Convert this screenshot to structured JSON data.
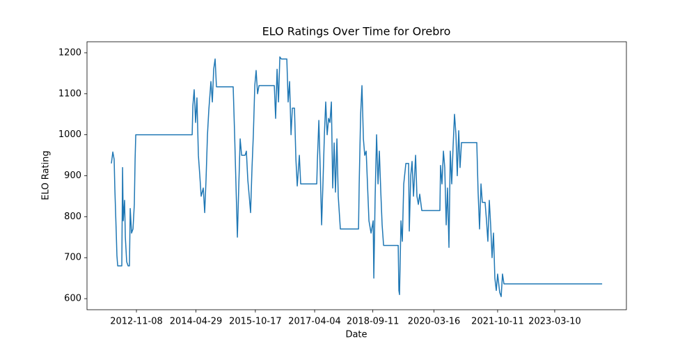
{
  "chart_data": {
    "type": "line",
    "title": "ELO Ratings Over Time for Orebro",
    "x_label": "Date",
    "y_label": "ELO Rating",
    "color": "#1f77b4",
    "xlim": [
      "2011-08-20",
      "2024-12-16"
    ],
    "xticks": [
      "2012-11-08",
      "2014-04-29",
      "2015-10-17",
      "2017-04-04",
      "2018-09-11",
      "2020-03-16",
      "2021-10-11",
      "2023-03-10"
    ],
    "ylim": [
      573,
      1227
    ],
    "yticks": [
      600,
      700,
      800,
      900,
      1000,
      1100,
      1200
    ],
    "grid": false,
    "x": [
      "2012-03-27",
      "2012-04-09",
      "2012-04-21",
      "2012-04-27",
      "2012-05-10",
      "2012-05-16",
      "2012-05-23",
      "2012-06-29",
      "2012-07-06",
      "2012-07-12",
      "2012-07-24",
      "2012-07-31",
      "2012-08-12",
      "2012-08-25",
      "2012-09-06",
      "2012-09-13",
      "2012-09-25",
      "2012-10-08",
      "2012-10-20",
      "2012-10-27",
      "2012-11-02",
      "2014-03-26",
      "2014-04-01",
      "2014-04-13",
      "2014-04-26",
      "2014-05-08",
      "2014-05-21",
      "2014-06-03",
      "2014-06-15",
      "2014-07-04",
      "2014-07-17",
      "2014-07-29",
      "2014-08-11",
      "2014-08-23",
      "2014-09-11",
      "2014-09-24",
      "2014-10-06",
      "2014-10-19",
      "2014-10-31",
      "2015-03-31",
      "2015-04-13",
      "2015-04-25",
      "2015-05-08",
      "2015-05-20",
      "2015-06-02",
      "2015-06-15",
      "2015-07-16",
      "2015-07-28",
      "2015-08-10",
      "2015-08-23",
      "2015-09-04",
      "2015-09-17",
      "2015-09-29",
      "2015-10-12",
      "2015-10-24",
      "2015-11-06",
      "2015-11-19",
      "2016-04-05",
      "2016-04-17",
      "2016-04-30",
      "2016-05-13",
      "2016-05-25",
      "2016-06-07",
      "2016-07-27",
      "2016-08-08",
      "2016-08-21",
      "2016-09-03",
      "2016-09-15",
      "2016-10-04",
      "2016-10-17",
      "2016-10-29",
      "2016-11-17",
      "2016-11-29",
      "2017-04-23",
      "2017-04-29",
      "2017-05-12",
      "2017-05-24",
      "2017-06-06",
      "2017-06-18",
      "2017-07-01",
      "2017-07-13",
      "2017-07-26",
      "2017-08-08",
      "2017-08-20",
      "2017-09-02",
      "2017-09-14",
      "2017-09-27",
      "2017-10-09",
      "2017-10-22",
      "2017-11-03",
      "2017-11-22",
      "2018-05-05",
      "2018-05-11",
      "2018-05-24",
      "2018-06-05",
      "2018-06-18",
      "2018-06-30",
      "2018-07-13",
      "2018-08-07",
      "2018-08-26",
      "2018-09-14",
      "2018-09-20",
      "2018-10-02",
      "2018-10-15",
      "2018-10-28",
      "2018-11-09",
      "2018-11-22",
      "2018-12-04",
      "2018-12-17",
      "2019-04-28",
      "2019-05-04",
      "2019-05-10",
      "2019-05-23",
      "2019-06-04",
      "2019-06-17",
      "2019-07-06",
      "2019-07-31",
      "2019-08-06",
      "2019-08-19",
      "2019-08-31",
      "2019-09-13",
      "2019-10-02",
      "2019-10-14",
      "2019-10-27",
      "2019-11-08",
      "2019-11-27",
      "2020-05-08",
      "2020-05-14",
      "2020-05-27",
      "2020-06-09",
      "2020-06-21",
      "2020-07-04",
      "2020-07-16",
      "2020-07-29",
      "2020-08-10",
      "2020-08-23",
      "2020-09-04",
      "2020-09-17",
      "2020-09-30",
      "2020-10-12",
      "2020-10-25",
      "2020-11-06",
      "2020-11-19",
      "2021-04-06",
      "2021-04-18",
      "2021-05-01",
      "2021-05-14",
      "2021-05-26",
      "2021-06-20",
      "2021-07-03",
      "2021-07-15",
      "2021-07-28",
      "2021-08-09",
      "2021-08-22",
      "2021-09-04",
      "2021-09-16",
      "2021-09-29",
      "2021-10-11",
      "2021-10-30",
      "2021-11-12",
      "2021-11-24",
      "2021-12-07",
      "2024-05-11"
    ],
    "values": [
      930,
      958,
      940,
      870,
      760,
      705,
      680,
      680,
      920,
      790,
      840,
      750,
      690,
      680,
      680,
      820,
      760,
      770,
      830,
      940,
      1000,
      1000,
      1070,
      1110,
      1030,
      1090,
      950,
      900,
      850,
      870,
      810,
      890,
      1000,
      1060,
      1130,
      1080,
      1160,
      1185,
      1117,
      1117,
      1000,
      880,
      750,
      870,
      990,
      950,
      950,
      960,
      890,
      850,
      810,
      920,
      1000,
      1120,
      1157,
      1100,
      1120,
      1120,
      1040,
      1160,
      1080,
      1190,
      1185,
      1185,
      1080,
      1130,
      1000,
      1065,
      1065,
      940,
      875,
      950,
      880,
      880,
      940,
      1035,
      920,
      780,
      880,
      1000,
      1080,
      1000,
      1040,
      1030,
      1080,
      870,
      980,
      860,
      990,
      850,
      770,
      770,
      880,
      1050,
      1120,
      990,
      950,
      960,
      790,
      760,
      790,
      650,
      850,
      1000,
      880,
      960,
      860,
      780,
      730,
      730,
      620,
      610,
      790,
      740,
      880,
      930,
      930,
      765,
      900,
      935,
      850,
      950,
      850,
      830,
      855,
      815,
      815,
      925,
      880,
      960,
      920,
      780,
      870,
      725,
      960,
      880,
      970,
      1050,
      1000,
      900,
      1010,
      920,
      981,
      981,
      860,
      770,
      880,
      835,
      835,
      790,
      740,
      840,
      780,
      700,
      760,
      650,
      620,
      660,
      615,
      605,
      660,
      636,
      636
    ]
  }
}
